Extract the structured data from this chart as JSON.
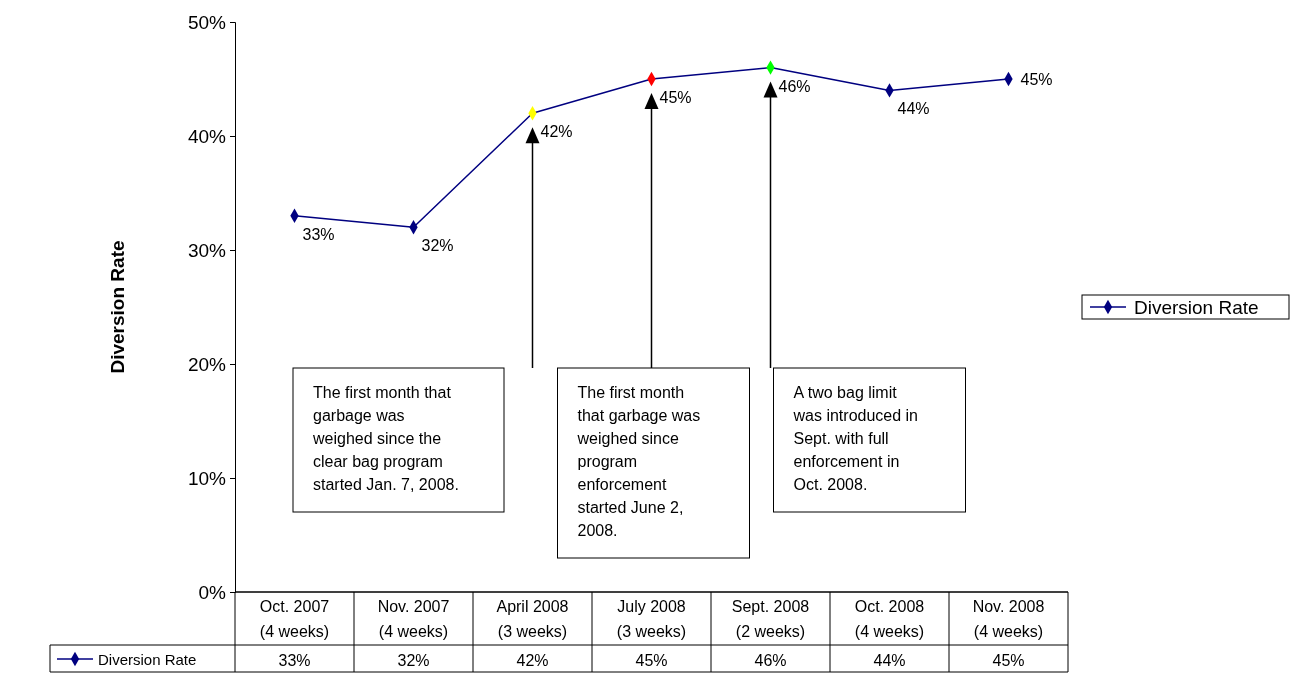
{
  "chart_data": {
    "type": "line",
    "ylabel": "Diversion Rate",
    "categories": [
      "Oct. 2007 (4 weeks)",
      "Nov. 2007 (4 weeks)",
      "April 2008 (3 weeks)",
      "July 2008 (3 weeks)",
      "Sept. 2008 (2 weeks)",
      "Oct. 2008 (4 weeks)",
      "Nov. 2008 (4 weeks)"
    ],
    "series": [
      {
        "name": "Diversion Rate",
        "color": "#000080",
        "colors": [
          "#000080",
          "#000080",
          "#ffff00",
          "#ff0000",
          "#00ff00",
          "#000080",
          "#000080"
        ],
        "values": [
          33,
          32,
          42,
          45,
          46,
          44,
          45
        ],
        "value_labels": [
          "33%",
          "32%",
          "42%",
          "45%",
          "46%",
          "44%",
          "45%"
        ]
      }
    ],
    "ylim": [
      0,
      50
    ],
    "yticks": [
      {
        "value": 0,
        "label": "0%"
      },
      {
        "value": 10,
        "label": "10%"
      },
      {
        "value": 20,
        "label": "20%"
      },
      {
        "value": 30,
        "label": "30%"
      },
      {
        "value": 40,
        "label": "40%"
      },
      {
        "value": 50,
        "label": "50%"
      }
    ],
    "data_labels": true,
    "marker": "diamond",
    "legend": "right",
    "grid": false,
    "annotations": [
      "The first month that garbage was weighed since the clear bag program started Jan. 7, 2008.",
      "The first month that garbage was weighed since program enforcement started June 2, 2008.",
      "A two bag limit was introduced in Sept. with full enforcement in Oct. 2008."
    ]
  }
}
